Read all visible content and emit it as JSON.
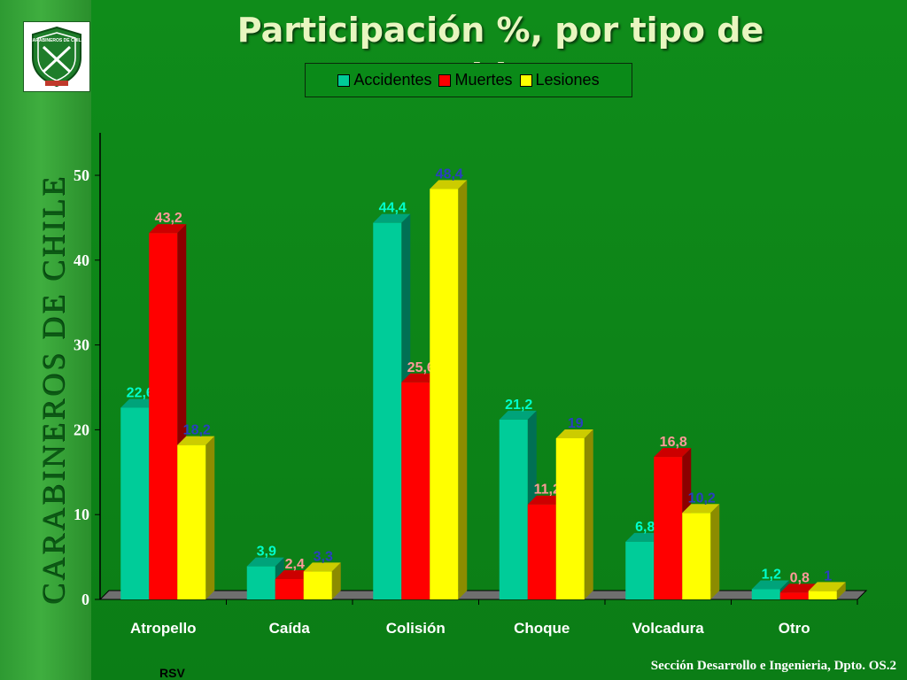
{
  "slide": {
    "title": "Participación %, por tipo de accidente",
    "brand_vertical": "CARABINEROS DE CHILE",
    "footer_left": "RSV",
    "footer_right": "Sección Desarrollo e Ingenieria, Dpto. OS.2"
  },
  "logo": {
    "icon": "carabineros-shield-icon",
    "text_top": "CARABINEROS DE CHILE"
  },
  "colors": {
    "background": "#0e8a1a",
    "accidentes": "#00cc99",
    "muertes": "#ff0000",
    "lesiones": "#ffff00"
  },
  "chart_data": {
    "type": "bar",
    "categories": [
      "Atropello",
      "Caída",
      "Colisión",
      "Choque",
      "Volcadura",
      "Otro"
    ],
    "series": [
      {
        "name": "Accidentes",
        "values": [
          22.6,
          3.9,
          44.4,
          21.2,
          6.8,
          1.2
        ],
        "labels": [
          "22,6",
          "3,9",
          "44,4",
          "21,2",
          "6,8",
          "1,2"
        ]
      },
      {
        "name": "Muertes",
        "values": [
          43.2,
          2.4,
          25.6,
          11.2,
          16.8,
          0.8
        ],
        "labels": [
          "43,2",
          "2,4",
          "25,6",
          "11,2",
          "16,8",
          "0,8"
        ]
      },
      {
        "name": "Lesiones",
        "values": [
          18.2,
          3.3,
          48.4,
          19,
          10.2,
          1
        ],
        "labels": [
          "18,2",
          "3,3",
          "48,4",
          "19",
          "10,2",
          "1"
        ]
      }
    ],
    "title": "Participación %, por tipo de accidente",
    "xlabel": "",
    "ylabel": "",
    "ylim": [
      0,
      50
    ],
    "yticks": [
      0,
      10,
      20,
      30,
      40,
      50
    ],
    "legend_position": "top",
    "grid": false,
    "style": "3d-columns"
  }
}
